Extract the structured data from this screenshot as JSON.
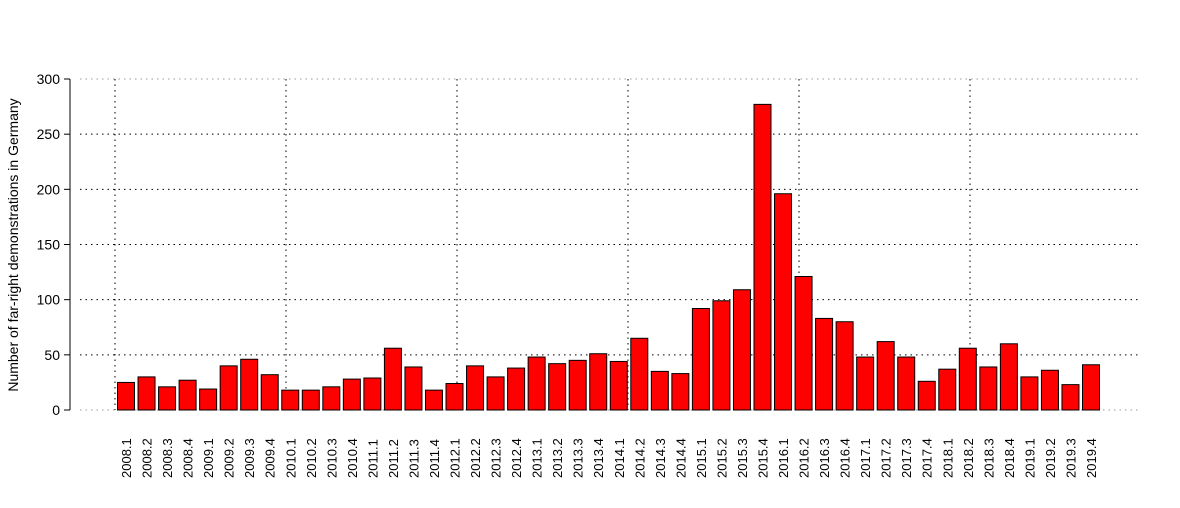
{
  "chart_data": {
    "type": "bar",
    "title": "",
    "xlabel": "",
    "ylabel": "Number of far-right demonstrations in Germany",
    "ylim": [
      0,
      300
    ],
    "yticks": [
      0,
      50,
      100,
      150,
      200,
      250,
      300
    ],
    "grid": true,
    "bar_color": "#ff0000",
    "categories": [
      "2008.1",
      "2008.2",
      "2008.3",
      "2008.4",
      "2009.1",
      "2009.2",
      "2009.3",
      "2009.4",
      "2010.1",
      "2010.2",
      "2010.3",
      "2010.4",
      "2011.1",
      "2011.2",
      "2011.3",
      "2011.4",
      "2012.1",
      "2012.2",
      "2012.3",
      "2012.4",
      "2013.1",
      "2013.2",
      "2013.3",
      "2013.4",
      "2014.1",
      "2014.2",
      "2014.3",
      "2014.4",
      "2015.1",
      "2015.2",
      "2015.3",
      "2015.4",
      "2016.1",
      "2016.2",
      "2016.3",
      "2016.4",
      "2017.1",
      "2017.2",
      "2017.3",
      "2017.4",
      "2018.1",
      "2018.2",
      "2018.3",
      "2018.4",
      "2019.1",
      "2019.2",
      "2019.3",
      "2019.4"
    ],
    "values": [
      25,
      30,
      21,
      27,
      19,
      40,
      46,
      32,
      18,
      18,
      21,
      28,
      29,
      56,
      39,
      18,
      24,
      40,
      30,
      38,
      48,
      42,
      45,
      51,
      44,
      65,
      35,
      33,
      92,
      99,
      109,
      277,
      196,
      121,
      83,
      80,
      48,
      62,
      48,
      26,
      37,
      56,
      39,
      60,
      30,
      36,
      23,
      41
    ]
  }
}
